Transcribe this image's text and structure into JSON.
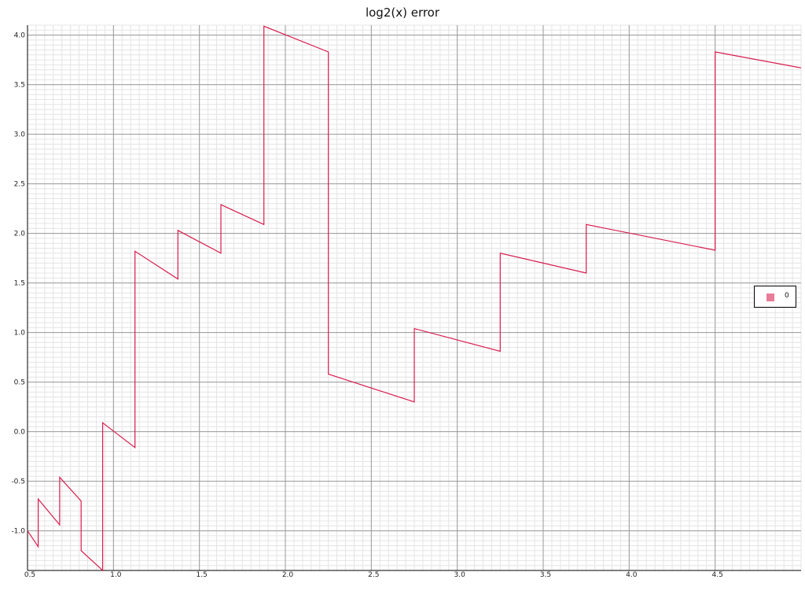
{
  "chart_data": {
    "type": "line",
    "title": "log2(x) error",
    "xlabel": "",
    "ylabel": "",
    "xlim": [
      0.5,
      5.0
    ],
    "ylim": [
      -1.4,
      4.1
    ],
    "x_ticks": [
      "0.5",
      "1.0",
      "1.5",
      "2.0",
      "2.5",
      "3.0",
      "3.5",
      "4.0",
      "4.5"
    ],
    "y_ticks": [
      "-1.0",
      "-0.5",
      "0.0",
      "0.5",
      "1.0",
      "1.5",
      "2.0",
      "2.5",
      "3.0",
      "3.5",
      "4.0"
    ],
    "grid": true,
    "legend_position": "right",
    "series": [
      {
        "name": "0",
        "color": "#d81b4c",
        "legend_color": "#e77d99",
        "x": [
          0.5,
          0.562,
          0.562,
          0.687,
          0.687,
          0.812,
          0.812,
          0.937,
          0.937,
          1.125,
          1.125,
          1.375,
          1.375,
          1.625,
          1.625,
          1.875,
          1.875,
          2.25,
          2.25,
          2.75,
          2.75,
          3.25,
          3.25,
          3.75,
          3.75,
          4.5,
          4.5,
          5.0
        ],
        "y": [
          -1.0,
          -1.16,
          -0.68,
          -0.94,
          -0.46,
          -0.7,
          -1.2,
          -1.4,
          0.09,
          -0.16,
          1.82,
          1.54,
          2.03,
          1.8,
          2.29,
          2.09,
          4.09,
          3.83,
          0.58,
          0.3,
          1.04,
          0.81,
          1.8,
          1.6,
          2.09,
          1.83,
          3.83,
          3.67
        ]
      }
    ]
  }
}
